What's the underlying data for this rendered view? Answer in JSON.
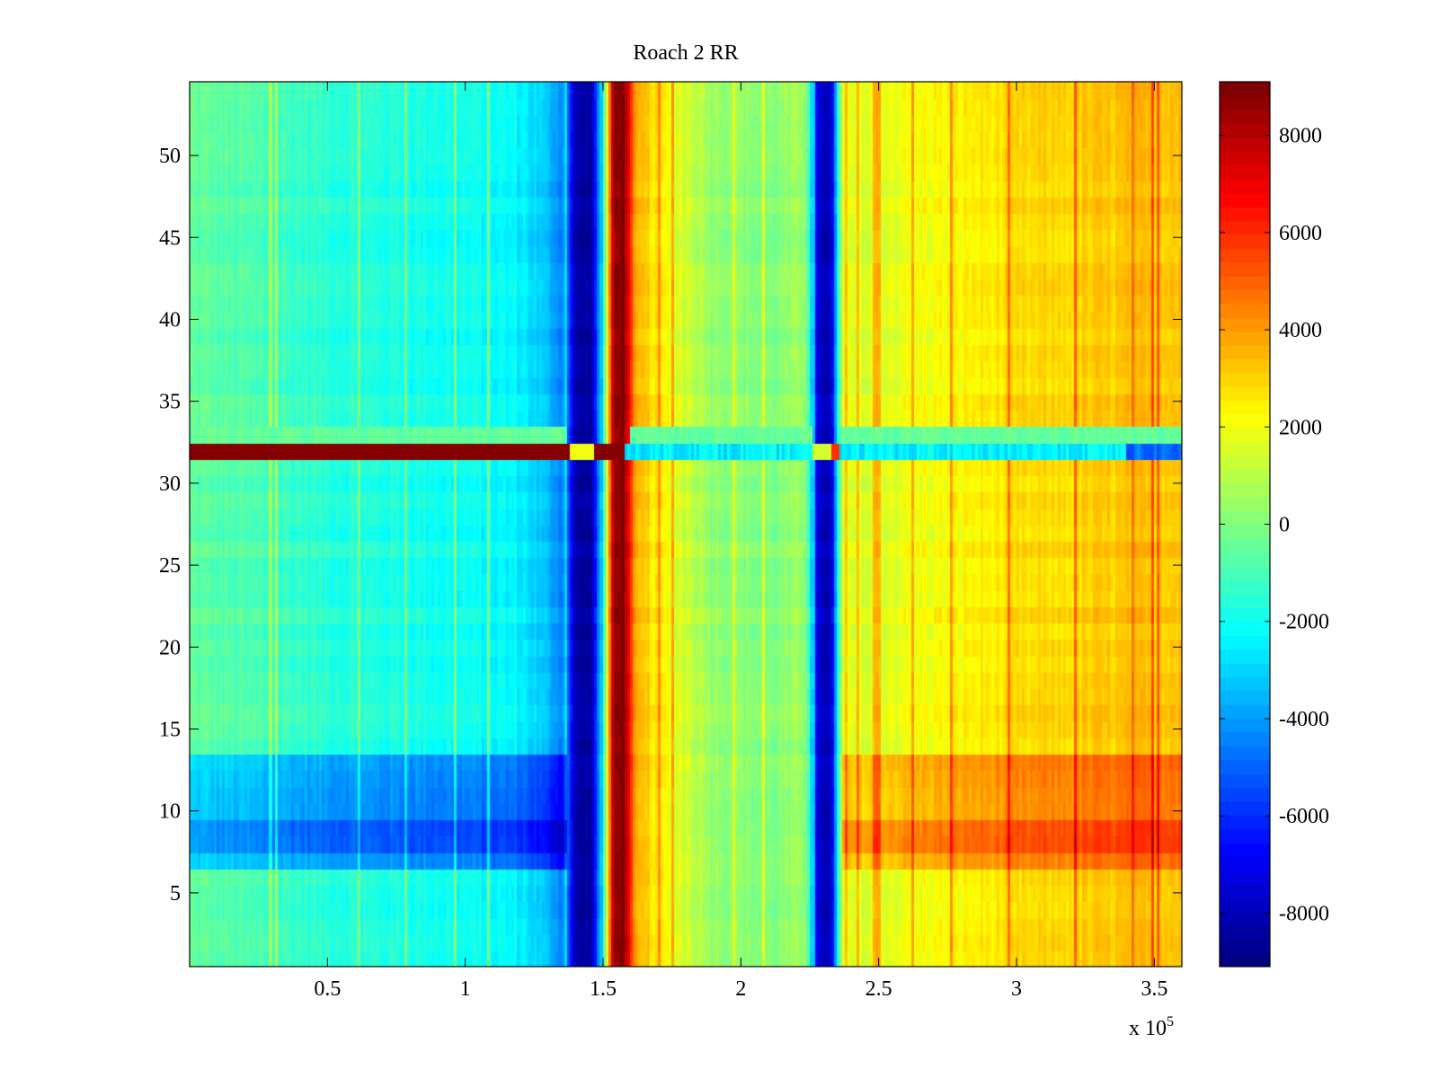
{
  "chart_data": {
    "type": "heatmap",
    "title": "Roach 2 RR",
    "xlabel": "",
    "ylabel": "",
    "x_multiplier_label": "x 10",
    "x_multiplier_exponent": "5",
    "xlim": [
      0,
      360000
    ],
    "ylim": [
      0.5,
      54.5
    ],
    "xticks": [
      {
        "value": 50000,
        "label": "0.5"
      },
      {
        "value": 100000,
        "label": "1"
      },
      {
        "value": 150000,
        "label": "1.5"
      },
      {
        "value": 200000,
        "label": "2"
      },
      {
        "value": 250000,
        "label": "2.5"
      },
      {
        "value": 300000,
        "label": "3"
      },
      {
        "value": 350000,
        "label": "3.5"
      }
    ],
    "yticks": [
      {
        "value": 5,
        "label": "5"
      },
      {
        "value": 10,
        "label": "10"
      },
      {
        "value": 15,
        "label": "15"
      },
      {
        "value": 20,
        "label": "20"
      },
      {
        "value": 25,
        "label": "25"
      },
      {
        "value": 30,
        "label": "30"
      },
      {
        "value": 35,
        "label": "35"
      },
      {
        "value": 40,
        "label": "40"
      },
      {
        "value": 45,
        "label": "45"
      },
      {
        "value": 50,
        "label": "50"
      }
    ],
    "colorbar": {
      "colormap": "jet",
      "clim": [
        -9100,
        9100
      ],
      "ticks": [
        {
          "value": 8000,
          "label": "8000"
        },
        {
          "value": 6000,
          "label": "6000"
        },
        {
          "value": 4000,
          "label": "4000"
        },
        {
          "value": 2000,
          "label": "2000"
        },
        {
          "value": 0,
          "label": "0"
        },
        {
          "value": -2000,
          "label": "-2000"
        },
        {
          "value": -4000,
          "label": "-4000"
        },
        {
          "value": -6000,
          "label": "-6000"
        },
        {
          "value": -8000,
          "label": "-8000"
        }
      ]
    },
    "rows": 54,
    "columns": 360,
    "value_profile_along_x": [
      {
        "x": 0,
        "value": -500
      },
      {
        "x": 50000,
        "value": -1500
      },
      {
        "x": 100000,
        "value": -2000
      },
      {
        "x": 120000,
        "value": -2400
      },
      {
        "x": 130000,
        "value": -3500
      },
      {
        "x": 137000,
        "value": -4500
      },
      {
        "x": 140000,
        "value": -8500
      },
      {
        "x": 146000,
        "value": -8500
      },
      {
        "x": 150000,
        "value": -2500
      },
      {
        "x": 154000,
        "value": 9000
      },
      {
        "x": 158000,
        "value": 9000
      },
      {
        "x": 162000,
        "value": 3500
      },
      {
        "x": 175000,
        "value": 2000
      },
      {
        "x": 190000,
        "value": 500
      },
      {
        "x": 210000,
        "value": 0
      },
      {
        "x": 224000,
        "value": 500
      },
      {
        "x": 228000,
        "value": -8000
      },
      {
        "x": 233000,
        "value": -8000
      },
      {
        "x": 237000,
        "value": 1500
      },
      {
        "x": 260000,
        "value": 2000
      },
      {
        "x": 300000,
        "value": 2800
      },
      {
        "x": 360000,
        "value": 3500
      }
    ],
    "row_features": [
      {
        "rows": [
          7,
          13
        ],
        "left_shift": -2500,
        "right_shift": 1500
      },
      {
        "rows": [
          8,
          9
        ],
        "left_shift": -1000,
        "right_shift": 1000
      },
      {
        "rows": [
          33,
          33
        ],
        "description_value": -500
      },
      {
        "rows": [
          32,
          32
        ],
        "left_value": 9000,
        "right_value": -2500
      }
    ]
  }
}
